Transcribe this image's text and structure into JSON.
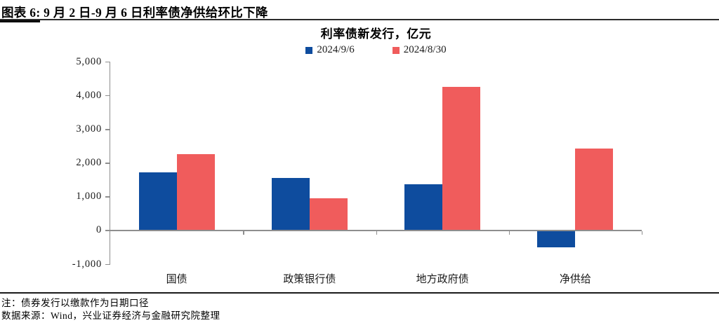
{
  "header": {
    "title": "图表 6:  9 月 2 日-9 月 6 日利率债净供给环比下降"
  },
  "chart_data": {
    "type": "bar",
    "title": "利率债新发行，亿元",
    "categories": [
      "国债",
      "政策银行债",
      "地方政府债",
      "净供给"
    ],
    "series": [
      {
        "name": "2024/9/6",
        "color": "#0e4c9e",
        "values": [
          1720,
          1550,
          1360,
          -520
        ]
      },
      {
        "name": "2024/8/30",
        "color": "#f05c5c",
        "values": [
          2250,
          950,
          4250,
          2430
        ]
      }
    ],
    "ylim": [
      -1000,
      5000
    ],
    "ytick_step": 1000,
    "ytick_labels": [
      "-1,000",
      "0",
      "1,000",
      "2,000",
      "3,000",
      "4,000",
      "5,000"
    ],
    "xlabel": "",
    "ylabel": "",
    "grid": false,
    "legend_position": "top-center",
    "axis_color": "#8e8e8e"
  },
  "footer": {
    "note": "注：债券发行以缴款作为日期口径",
    "source": "数据来源：Wind，兴业证券经济与金融研究院整理"
  }
}
